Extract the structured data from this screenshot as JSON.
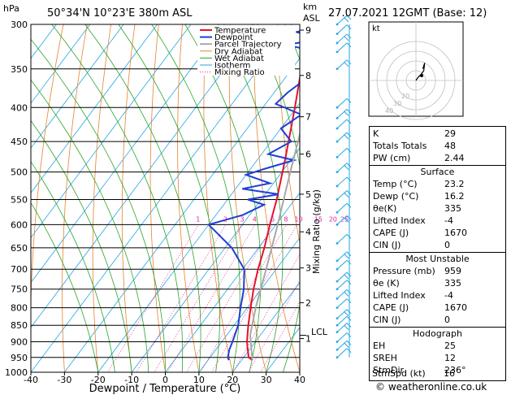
{
  "header": {
    "top_left_unit": "hPa",
    "location": "50°34'N  10°23'E  380m  ASL",
    "height_unit_top": "km",
    "height_unit_bottom": "ASL",
    "datetime": "27.07.2021  12GMT  (Base: 12)"
  },
  "chart_data": {
    "type": "line",
    "title": "",
    "xlabel": "Dewpoint / Temperature (°C)",
    "ylabel": "hPa",
    "y_scale": "log-pressure",
    "x_ticks": [
      -40,
      -30,
      -20,
      -10,
      0,
      10,
      20,
      30,
      40
    ],
    "pressure_levels": [
      300,
      350,
      400,
      450,
      500,
      550,
      600,
      650,
      700,
      750,
      800,
      850,
      900,
      950,
      1000
    ],
    "height_ticks_km": [
      "9",
      "8",
      "7",
      "6",
      "5",
      "4",
      "3",
      "2",
      "1"
    ],
    "lcl_label": "LCL",
    "right_axis_label": "Mixing Ratio (g/kg)",
    "mixing_ratio_labels": [
      "1",
      "2",
      "3",
      "4",
      "6",
      "8",
      "10",
      "15",
      "20",
      "25"
    ],
    "legend": [
      "Temperature",
      "Dewpoint",
      "Parcel Trajectory",
      "Dry Adiabat",
      "Wet Adiabat",
      "Isotherm",
      "Mixing Ratio"
    ],
    "series": [
      {
        "name": "Temperature",
        "color": "#e8102a",
        "points": [
          [
            959,
            23.2
          ],
          [
            950,
            21.5
          ],
          [
            925,
            19.5
          ],
          [
            900,
            17.5
          ],
          [
            850,
            14.2
          ],
          [
            800,
            11.0
          ],
          [
            750,
            7.7
          ],
          [
            700,
            4.6
          ],
          [
            650,
            1.7
          ],
          [
            600,
            -1.8
          ],
          [
            550,
            -5.4
          ],
          [
            500,
            -9.8
          ],
          [
            475,
            -12.2
          ],
          [
            450,
            -14.8
          ],
          [
            400,
            -20.5
          ],
          [
            350,
            -27.2
          ],
          [
            330,
            -30.0
          ],
          [
            300,
            -34.0
          ]
        ]
      },
      {
        "name": "Dewpoint",
        "color": "#1e3fd6",
        "points": [
          [
            959,
            16.2
          ],
          [
            950,
            15.3
          ],
          [
            925,
            14.0
          ],
          [
            900,
            13.2
          ],
          [
            850,
            11.2
          ],
          [
            800,
            8.0
          ],
          [
            750,
            4.8
          ],
          [
            700,
            0.5
          ],
          [
            650,
            -8.0
          ],
          [
            600,
            -20.0
          ],
          [
            580,
            -12.0
          ],
          [
            560,
            -8.0
          ],
          [
            550,
            -14.0
          ],
          [
            540,
            -6.0
          ],
          [
            530,
            -18.0
          ],
          [
            520,
            -11.0
          ],
          [
            505,
            -20.0
          ],
          [
            495,
            -16.0
          ],
          [
            480,
            -9.0
          ],
          [
            470,
            -18.0
          ],
          [
            450,
            -14.0
          ],
          [
            430,
            -20.0
          ],
          [
            410,
            -17.0
          ],
          [
            395,
            -27.0
          ],
          [
            380,
            -26.0
          ],
          [
            365,
            -24.0
          ],
          [
            350,
            -25.0
          ],
          [
            340,
            -24.0
          ],
          [
            330,
            -26.0
          ],
          [
            322,
            -37.0
          ],
          [
            315,
            -27.0
          ],
          [
            308,
            -37.0
          ],
          [
            302,
            -29.0
          ]
        ]
      },
      {
        "name": "Parcel Trajectory",
        "color": "#a8a8a8",
        "points": [
          [
            959,
            23.2
          ],
          [
            880,
            17.0
          ],
          [
            800,
            12.5
          ],
          [
            700,
            7.0
          ],
          [
            600,
            0.5
          ],
          [
            500,
            -7.5
          ],
          [
            400,
            -17.0
          ],
          [
            300,
            -30.0
          ]
        ]
      }
    ],
    "wind_barbs": "right column, 300–1000 hPa",
    "axes": {
      "xlim": [
        -40,
        40
      ],
      "ylim": [
        1000,
        300
      ]
    }
  },
  "hodograph": {
    "unit_label": "kt",
    "ring_labels": [
      "20",
      "30",
      "40"
    ],
    "wind_points_kt": [
      [
        0,
        0
      ],
      [
        2,
        3
      ],
      [
        5,
        6
      ],
      [
        8,
        10
      ],
      [
        9,
        18
      ],
      [
        7,
        12
      ]
    ]
  },
  "stability_table": {
    "top": [
      {
        "label": "K",
        "value": "29"
      },
      {
        "label": "Totals Totals",
        "value": "48"
      },
      {
        "label": "PW (cm)",
        "value": "2.44"
      }
    ],
    "surface": {
      "title": "Surface",
      "rows": [
        {
          "label": "Temp (°C)",
          "value": "23.2"
        },
        {
          "label": "Dewp (°C)",
          "value": "16.2"
        },
        {
          "label": "θe(K)",
          "value": "335"
        },
        {
          "label": "Lifted Index",
          "value": "-4"
        },
        {
          "label": "CAPE (J)",
          "value": "1670"
        },
        {
          "label": "CIN (J)",
          "value": "0"
        }
      ]
    },
    "most_unstable": {
      "title": "Most Unstable",
      "rows": [
        {
          "label": "Pressure (mb)",
          "value": "959"
        },
        {
          "label": "θe (K)",
          "value": "335"
        },
        {
          "label": "Lifted Index",
          "value": "-4"
        },
        {
          "label": "CAPE (J)",
          "value": "1670"
        },
        {
          "label": "CIN (J)",
          "value": "0"
        }
      ]
    },
    "hodograph_indices": {
      "title": "Hodograph",
      "rows": [
        {
          "label": "EH",
          "value": "25"
        },
        {
          "label": "SREH",
          "value": "12"
        },
        {
          "label": "StmDir",
          "value": "236°"
        },
        {
          "label": "StmSpd (kt)",
          "value": "16"
        }
      ]
    }
  },
  "footer": {
    "credit": "© weatheronline.co.uk"
  },
  "colors": {
    "temperature": "#e8102a",
    "dewpoint": "#1e3fd6",
    "parcel": "#a8a8a8",
    "dry_adiabat": "#e8832a",
    "wet_adiabat": "#2aa52a",
    "isotherm": "#22a6e6",
    "mixing_ratio": "#e020a0",
    "wind_barb": "#22a6e6"
  }
}
